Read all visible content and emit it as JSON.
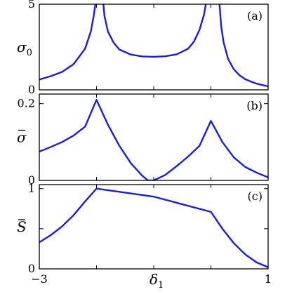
{
  "chart_data": [
    {
      "type": "line",
      "panel_label": "(a)",
      "ylabel_symbol": "σ",
      "ylabel_sub": "0",
      "ylabel_bar": false,
      "xlim": [
        -3,
        1
      ],
      "ylim": [
        0,
        5
      ],
      "yticks": [
        {
          "v": 0,
          "label": "0"
        },
        {
          "v": 5,
          "label": "5"
        }
      ],
      "color": "#1a1aeb",
      "series": [
        {
          "x": [
            -3.0,
            -2.8,
            -2.6,
            -2.4,
            -2.2,
            -2.1,
            -2.05,
            -2.02
          ],
          "y": [
            0.6,
            0.8,
            1.05,
            1.5,
            2.4,
            3.4,
            4.3,
            5.0
          ]
        },
        {
          "x": [
            -1.88,
            -1.86,
            -1.8,
            -1.7,
            -1.6,
            -1.4,
            -1.2,
            -1.0,
            -0.8,
            -0.6,
            -0.4,
            -0.3,
            -0.2,
            -0.12,
            -0.09
          ],
          "y": [
            5.0,
            4.3,
            3.4,
            2.75,
            2.35,
            2.06,
            1.95,
            1.93,
            1.96,
            2.07,
            2.4,
            2.8,
            3.5,
            4.4,
            5.0
          ]
        },
        {
          "x": [
            0.15,
            0.18,
            0.22,
            0.3,
            0.4,
            0.5,
            0.6,
            0.7,
            0.8,
            0.9,
            1.0
          ],
          "y": [
            5.0,
            3.7,
            2.8,
            1.8,
            1.2,
            0.85,
            0.62,
            0.48,
            0.36,
            0.28,
            0.2
          ]
        }
      ]
    },
    {
      "type": "line",
      "panel_label": "(b)",
      "ylabel_symbol": "σ",
      "ylabel_sub": "",
      "ylabel_bar": true,
      "xlim": [
        -3,
        1
      ],
      "ylim": [
        0,
        0.225
      ],
      "yticks": [
        {
          "v": 0,
          "label": "0"
        },
        {
          "v": 0.2,
          "label": "0.2"
        }
      ],
      "color": "#1a1aeb",
      "series": [
        {
          "x": [
            -3.0,
            -2.8,
            -2.6,
            -2.4,
            -2.2,
            -2.0,
            -1.8,
            -1.6,
            -1.4,
            -1.2,
            -1.1,
            -1.0,
            -0.8,
            -0.6,
            -0.4,
            -0.2,
            0.0,
            0.2,
            0.4,
            0.6,
            0.8,
            1.0
          ],
          "y": [
            0.075,
            0.087,
            0.1,
            0.117,
            0.14,
            0.21,
            0.145,
            0.09,
            0.045,
            0.012,
            0.0,
            0.0,
            0.014,
            0.037,
            0.062,
            0.09,
            0.155,
            0.1,
            0.06,
            0.035,
            0.02,
            0.008
          ]
        }
      ]
    },
    {
      "type": "line",
      "panel_label": "(c)",
      "ylabel_symbol": "S",
      "ylabel_sub": "",
      "ylabel_bar": true,
      "xlim": [
        -3,
        1
      ],
      "ylim": [
        0,
        1.05
      ],
      "yticks": [
        {
          "v": 0,
          "label": "0"
        },
        {
          "v": 0.5,
          "label": ""
        },
        {
          "v": 1,
          "label": "1"
        }
      ],
      "xticks": [
        {
          "v": -3,
          "label": "−3"
        },
        {
          "v": 1,
          "label": "1"
        }
      ],
      "xlabel_symbol": "δ",
      "xlabel_sub": "1",
      "color": "#1a1aeb",
      "series": [
        {
          "x": [
            -3.0,
            -2.8,
            -2.6,
            -2.4,
            -2.2,
            -2.0,
            -1.0,
            0.0,
            0.2,
            0.4,
            0.6,
            0.8,
            1.0
          ],
          "y": [
            0.33,
            0.42,
            0.53,
            0.67,
            0.84,
            1.0,
            0.9,
            0.71,
            0.5,
            0.32,
            0.18,
            0.08,
            0.02
          ]
        }
      ]
    }
  ]
}
